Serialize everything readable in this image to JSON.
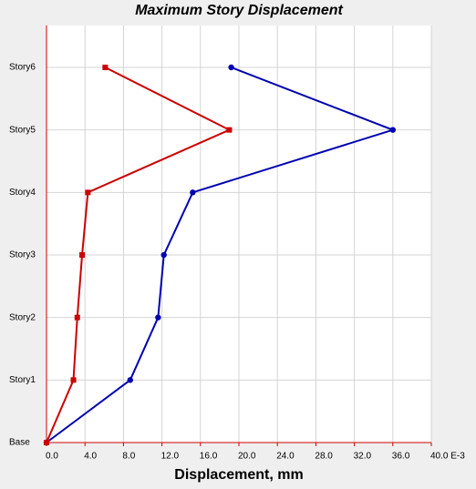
{
  "chart_data": {
    "type": "line",
    "title": "Maximum Story Displacement",
    "x_label": "Displacement, mm",
    "categories": [
      "Base",
      "Story1",
      "Story2",
      "Story3",
      "Story4",
      "Story5",
      "Story6"
    ],
    "series": [
      {
        "color": "#0000b0",
        "marker": "circle",
        "values": [
          0,
          8.7,
          11.6,
          12.2,
          15.2,
          36.0,
          19.2
        ]
      },
      {
        "color": "#cc0000",
        "marker": "square",
        "values": [
          0,
          2.8,
          3.2,
          3.7,
          4.3,
          19.0,
          6.1
        ]
      }
    ],
    "xlim": [
      0,
      40
    ],
    "xticks": [
      {
        "value": 0,
        "label": "0.0"
      },
      {
        "value": 4,
        "label": "4.0"
      },
      {
        "value": 8,
        "label": "8.0"
      },
      {
        "value": 12,
        "label": "12.0"
      },
      {
        "value": 16,
        "label": "16.0"
      },
      {
        "value": 20,
        "label": "20.0"
      },
      {
        "value": 24,
        "label": "24.0"
      },
      {
        "value": 28,
        "label": "28.0"
      },
      {
        "value": 32,
        "label": "32.0"
      },
      {
        "value": 36,
        "label": "36.0"
      },
      {
        "value": 40,
        "label": "40.0 E-3"
      }
    ],
    "grid": true
  }
}
